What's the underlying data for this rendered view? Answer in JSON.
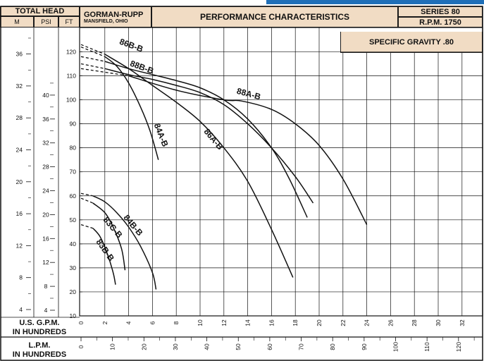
{
  "header": {
    "total_head": "TOTAL HEAD",
    "unit_m": "M",
    "unit_psi": "PSI",
    "unit_ft": "FT",
    "company": "GORMAN-RUPP",
    "location": "MANSFIELD, OHIO",
    "title": "PERFORMANCE CHARACTERISTICS",
    "series": "SERIES 80",
    "rpm": "R.P.M. 1750",
    "specific_gravity": "SPECIFIC GRAVITY .80"
  },
  "axes": {
    "gpm_label_1": "U.S. G.P.M.",
    "gpm_label_2": "IN HUNDREDS",
    "lpm_label_1": "L.P.M.",
    "lpm_label_2": "IN HUNDREDS",
    "gpm_ticks": [
      "0",
      "2",
      "4",
      "6",
      "8",
      "10",
      "12",
      "14",
      "16",
      "18",
      "20",
      "22",
      "24",
      "26",
      "28",
      "30",
      "32"
    ],
    "lpm_ticks": [
      "0",
      "10",
      "20",
      "30",
      "40",
      "50",
      "60",
      "70",
      "80",
      "90",
      "100",
      "110",
      "120"
    ],
    "ft_ticks": [
      "10",
      "20",
      "30",
      "40",
      "50",
      "60",
      "70",
      "80",
      "90",
      "100",
      "110",
      "120"
    ],
    "psi_ticks": [
      "4",
      "8",
      "12",
      "16",
      "20",
      "24",
      "28",
      "32",
      "36",
      "40"
    ],
    "m_ticks": [
      "4",
      "8",
      "12",
      "16",
      "20",
      "24",
      "28",
      "32",
      "36"
    ]
  },
  "colors": {
    "header_fill": "#f1dcc4",
    "line": "#111111",
    "accent_bar": "#1f6fb8"
  },
  "chart_data": {
    "type": "line",
    "xlabel": "U.S. G.P.M. IN HUNDREDS",
    "ylabel": "TOTAL HEAD FT",
    "xlim": [
      0,
      33
    ],
    "ylim": [
      10,
      125
    ],
    "grid": true,
    "series": [
      {
        "name": "86B-B",
        "x": [
          0,
          2,
          4,
          6,
          8,
          10,
          12,
          14,
          16,
          17.5,
          19
        ],
        "y": [
          118,
          116,
          113,
          110.5,
          108,
          105,
          100,
          92,
          80,
          67,
          51
        ]
      },
      {
        "name": "88B-B",
        "x": [
          0,
          2,
          4,
          6,
          8,
          10,
          12,
          14,
          16,
          18,
          19.5
        ],
        "y": [
          115,
          113,
          110.5,
          108.5,
          106,
          103,
          98,
          90,
          80,
          68,
          57
        ]
      },
      {
        "name": "88A-B",
        "x": [
          0,
          4,
          8,
          12,
          13.5,
          16,
          18,
          20,
          22,
          24
        ],
        "y": [
          113,
          110,
          104,
          100,
          99.5,
          96,
          90,
          81,
          67,
          48
        ]
      },
      {
        "name": "84A-B",
        "x": [
          0,
          2,
          3,
          4,
          5,
          5.8,
          6.5
        ],
        "y": [
          122,
          118,
          114,
          107,
          97,
          87,
          75
        ]
      },
      {
        "name": "86A-B",
        "x": [
          0,
          2,
          4,
          6,
          8,
          10,
          12,
          14,
          16,
          17.8
        ],
        "y": [
          123,
          119,
          113,
          106,
          99,
          91,
          80,
          66,
          46,
          26
        ]
      },
      {
        "name": "84B-B",
        "x": [
          0,
          1,
          2,
          3,
          4,
          5,
          6,
          6.3
        ],
        "y": [
          61,
          60,
          57.5,
          53,
          47,
          39,
          28,
          21
        ]
      },
      {
        "name": "83C-B",
        "x": [
          0,
          1,
          2,
          2.7,
          3.4,
          3.7
        ],
        "y": [
          59,
          57,
          53,
          47,
          38,
          29
        ]
      },
      {
        "name": "83B-B",
        "x": [
          0,
          1,
          1.6,
          2.2,
          2.7,
          2.9
        ],
        "y": [
          48,
          46.5,
          43,
          36,
          28,
          23
        ]
      }
    ]
  }
}
